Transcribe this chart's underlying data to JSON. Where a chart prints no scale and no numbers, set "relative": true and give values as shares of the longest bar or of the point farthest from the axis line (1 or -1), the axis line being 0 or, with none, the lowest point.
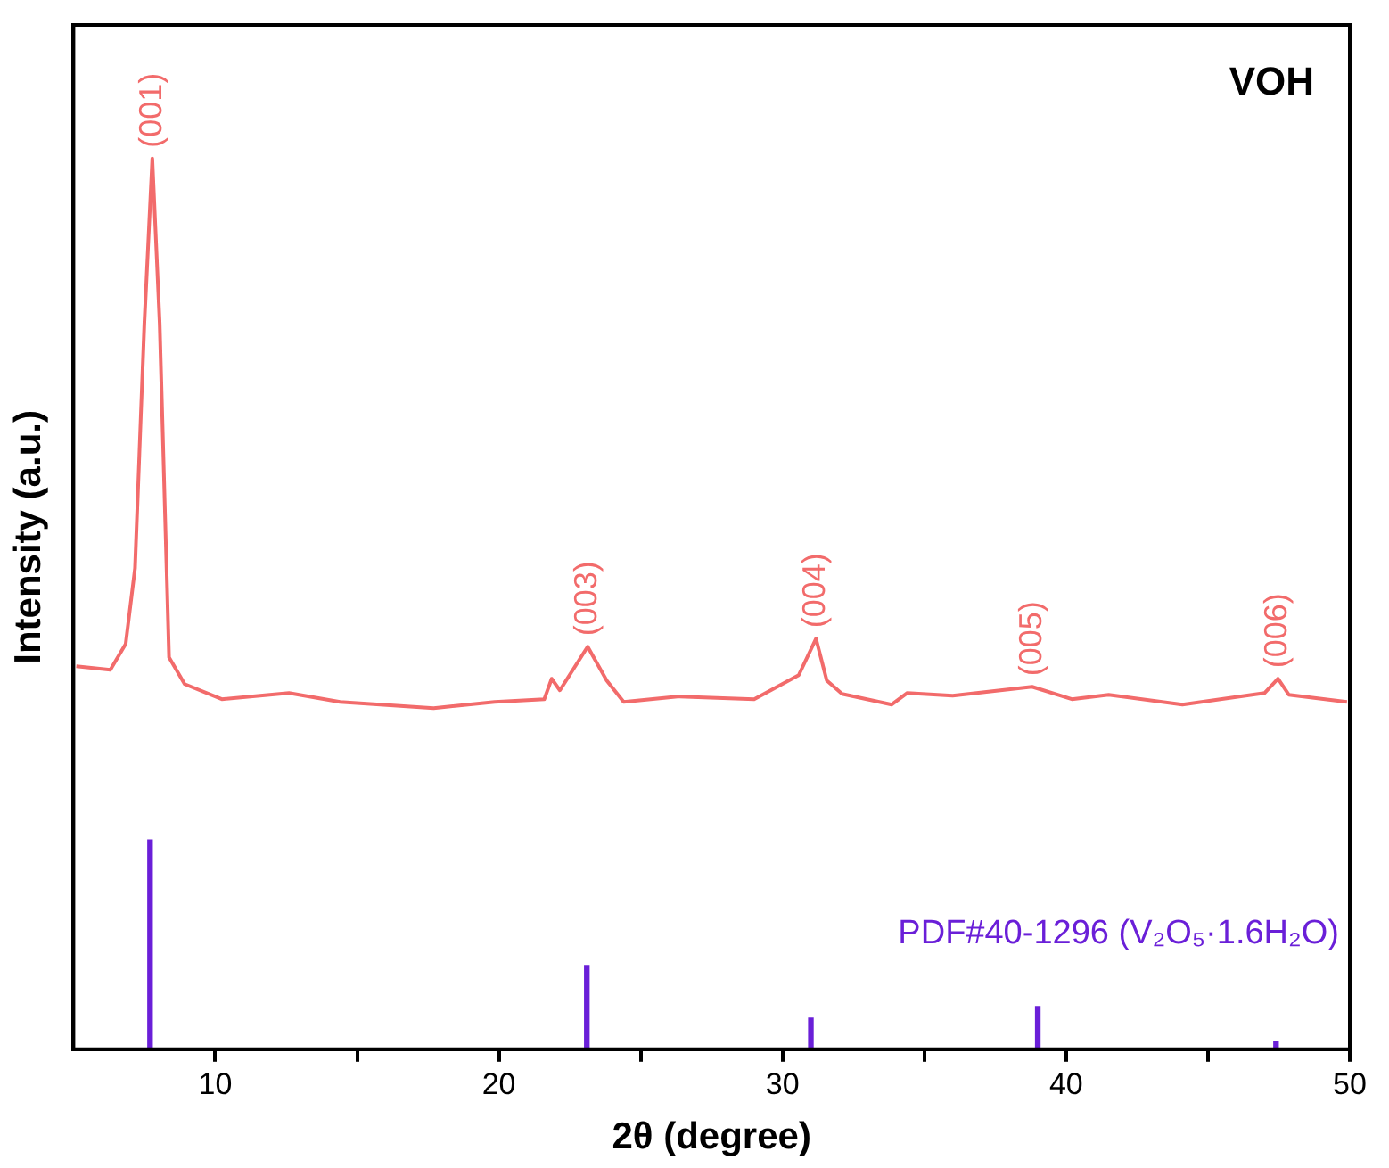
{
  "chart_data": {
    "type": "line",
    "title": "VOH",
    "xlabel": "2θ (degree)",
    "ylabel": "Intensity (a.u.)",
    "relative": true,
    "xlim": [
      5,
      50
    ],
    "xticks": [
      10,
      {
        "value": 15,
        "label": null
      },
      20,
      {
        "value": 25,
        "label": null
      },
      30,
      {
        "value": 35,
        "label": null
      },
      40,
      {
        "value": 45,
        "label": null
      },
      50
    ],
    "series": [
      {
        "color": "#f26b6b",
        "x": [
          5.1,
          6.3,
          6.84,
          7.17,
          7.5,
          7.78,
          8.04,
          8.37,
          8.92,
          10.23,
          12.6,
          14.4,
          17.7,
          19.85,
          21.6,
          21.86,
          22.15,
          23.13,
          23.8,
          24.4,
          26.3,
          29.0,
          30.57,
          31.18,
          31.56,
          32.1,
          33.85,
          34.4,
          36.0,
          38.8,
          40.2,
          41.5,
          44.1,
          47.0,
          47.47,
          47.85,
          49.9
        ],
        "values": [
          0.43,
          0.426,
          0.455,
          0.54,
          0.815,
          1,
          0.815,
          0.44,
          0.41,
          0.393,
          0.4,
          0.39,
          0.383,
          0.39,
          0.393,
          0.416,
          0.403,
          0.452,
          0.414,
          0.39,
          0.396,
          0.393,
          0.42,
          0.461,
          0.414,
          0.399,
          0.387,
          0.4,
          0.397,
          0.407,
          0.393,
          0.398,
          0.387,
          0.4,
          0.416,
          0.398,
          0.39
        ]
      },
      {
        "type": "bar",
        "name": "PDF#40-1296 (V₂O₅·1.6H₂O)",
        "color": "#6a1fd8",
        "x": [
          7.7,
          23.1,
          31.0,
          39.0,
          47.4
        ],
        "values": [
          0.235,
          0.094,
          0.035,
          0.048,
          0.009
        ]
      }
    ],
    "annotations": [
      {
        "text": "(001)",
        "x": 7.78,
        "y": 1
      },
      {
        "text": "(003)",
        "x": 23.13,
        "y": 0.452
      },
      {
        "text": "(004)",
        "x": 31.18,
        "y": 0.461
      },
      {
        "text": "(005)",
        "x": 38.8,
        "y": 0.407
      },
      {
        "text": "(006)",
        "x": 47.47,
        "y": 0.416
      }
    ]
  }
}
